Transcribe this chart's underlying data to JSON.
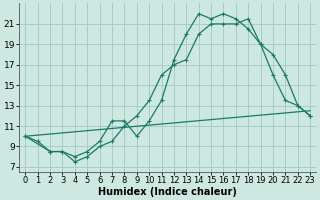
{
  "xlabel": "Humidex (Indice chaleur)",
  "bg_color": "#cce8e0",
  "grid_color": "#aaccc4",
  "line_color": "#1a7a6a",
  "xlim": [
    -0.5,
    23.5
  ],
  "ylim": [
    6.5,
    23.0
  ],
  "xticks": [
    0,
    1,
    2,
    3,
    4,
    5,
    6,
    7,
    8,
    9,
    10,
    11,
    12,
    13,
    14,
    15,
    16,
    17,
    18,
    19,
    20,
    21,
    22,
    23
  ],
  "yticks": [
    7,
    9,
    11,
    13,
    15,
    17,
    19,
    21
  ],
  "series1_x": [
    0,
    1,
    2,
    3,
    4,
    5,
    6,
    7,
    8,
    9,
    10,
    11,
    12,
    13,
    14,
    15,
    16,
    17,
    18,
    19,
    20,
    21,
    22,
    23
  ],
  "series1_y": [
    10,
    9.5,
    8.5,
    8.5,
    7.5,
    8.0,
    9.0,
    9.5,
    11.0,
    12.0,
    13.5,
    16.0,
    17.0,
    17.5,
    20.0,
    21.0,
    21.0,
    21.0,
    21.5,
    19.0,
    18.0,
    16.0,
    13.0,
    12.0
  ],
  "series2_x": [
    0,
    2,
    3,
    4,
    5,
    6,
    7,
    8,
    9,
    10,
    11,
    12,
    13,
    14,
    15,
    16,
    17,
    18,
    19,
    20,
    21,
    22,
    23
  ],
  "series2_y": [
    10,
    8.5,
    8.5,
    8.0,
    8.5,
    9.5,
    11.5,
    11.5,
    10.0,
    11.5,
    13.5,
    17.5,
    20.0,
    22.0,
    21.5,
    22.0,
    21.5,
    20.5,
    19.0,
    16.0,
    13.5,
    13.0,
    12.0
  ],
  "series3_x": [
    0,
    23
  ],
  "series3_y": [
    10,
    12.5
  ],
  "font_size": 7.0
}
